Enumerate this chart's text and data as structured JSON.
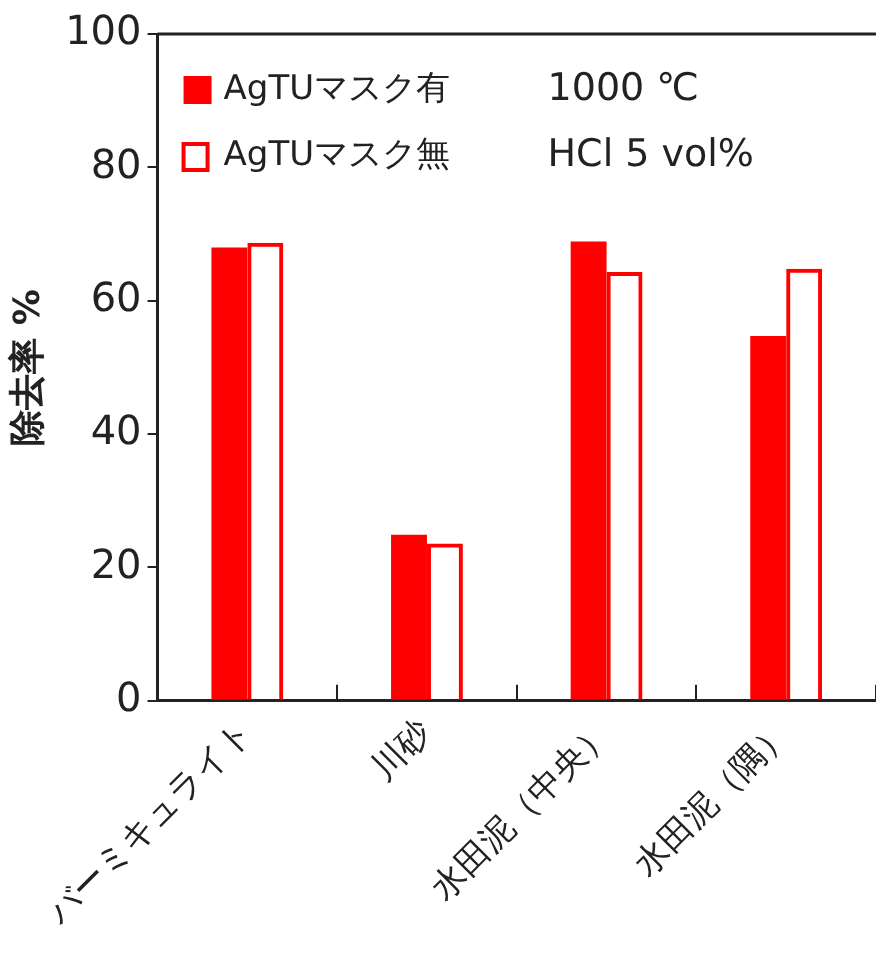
{
  "chart_data": {
    "type": "bar",
    "ylabel": "除去率 %",
    "categories": [
      "バーミキュライト",
      "川砂",
      "水田泥（中央）",
      "水田泥（隅）"
    ],
    "series": [
      {
        "name": "AgTUマスク有",
        "color": "#ff0000",
        "values": [
          68.0,
          24.9,
          68.9,
          54.7
        ]
      },
      {
        "name": "AgTUマスク無",
        "color": "#ff0000",
        "values": [
          68.7,
          23.6,
          64.3,
          64.8
        ]
      }
    ],
    "ylim": [
      0,
      100
    ],
    "yticks": [
      0,
      20,
      40,
      60,
      80,
      100
    ],
    "grid": false,
    "legend": "top left",
    "annotations": [
      "1000 ℃",
      "HCl 5 vol%"
    ]
  }
}
